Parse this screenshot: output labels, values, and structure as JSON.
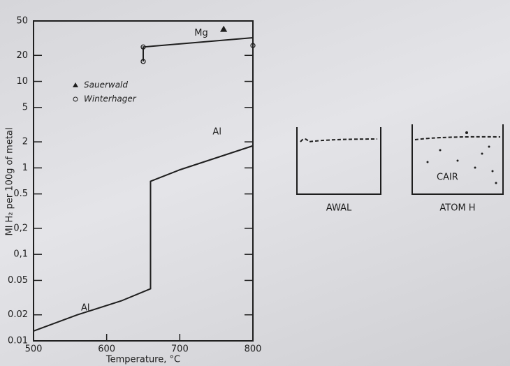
{
  "chart_data": {
    "type": "line",
    "x_label": "Temperature, °C",
    "y_label": "Ml H₂ per 100g of metal",
    "xlim": [
      500,
      800
    ],
    "xticks": [
      500,
      600,
      700,
      800
    ],
    "ylim": [
      0.01,
      50
    ],
    "log_y": true,
    "yticks": [
      0.01,
      0.02,
      0.05,
      {
        "value": 0.1,
        "label": "0,1"
      },
      {
        "value": 0.2,
        "label": "0,2"
      },
      0.5,
      1,
      2,
      5,
      10,
      20,
      50
    ],
    "legend": "upper left",
    "series": [
      {
        "name": "Al",
        "color": "#1e1e1e",
        "marker": "none",
        "x": [
          500,
          560,
          620,
          660,
          660,
          700,
          800
        ],
        "values": [
          0.013,
          0.02,
          0.029,
          0.04,
          0.7,
          0.95,
          1.8
        ]
      },
      {
        "name": "Mg",
        "color": "#1e1e1e",
        "marker": "none",
        "x": [
          650,
          650,
          800
        ],
        "values": [
          17,
          25,
          32
        ]
      },
      {
        "name": "Sauerwald",
        "color": "#1e1e1e",
        "marker": "triangle",
        "x": [
          760
        ],
        "values": [
          40
        ]
      },
      {
        "name": "Winterhager",
        "color": "#1e1e1e",
        "marker": "circle",
        "x": [
          650,
          650,
          800
        ],
        "values": [
          25,
          17,
          26
        ]
      }
    ]
  },
  "diagram": {
    "beakers": [
      {
        "label": "AWAL"
      },
      {
        "label": "ATOM H",
        "content": "CAIR"
      }
    ]
  }
}
